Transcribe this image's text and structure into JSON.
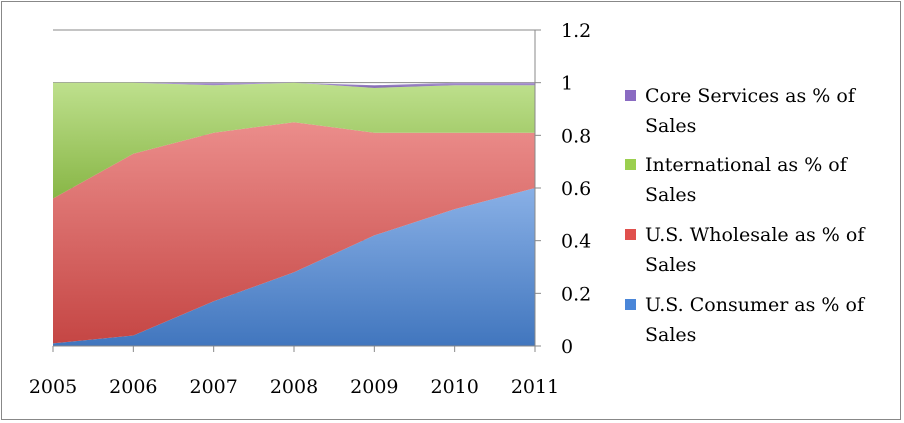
{
  "chart_data": {
    "type": "area",
    "stacked": true,
    "title": "",
    "xlabel": "",
    "ylabel": "",
    "x": [
      "2005",
      "2006",
      "2007",
      "2008",
      "2009",
      "2010",
      "2011"
    ],
    "ylim": [
      0,
      1.2
    ],
    "yticks": [
      "0",
      "0.2",
      "0.4",
      "0.6",
      "0.8",
      "1",
      "1.2"
    ],
    "grid": "horizontal",
    "legend_position": "right",
    "series": [
      {
        "name": "U.S. Consumer as % of Sales",
        "color": "#4a86d8",
        "values": [
          0.01,
          0.04,
          0.17,
          0.28,
          0.42,
          0.52,
          0.6
        ]
      },
      {
        "name": "U.S. Wholesale as % of Sales",
        "color": "#e0504d",
        "values": [
          0.55,
          0.69,
          0.64,
          0.57,
          0.39,
          0.29,
          0.21
        ]
      },
      {
        "name": "International as % of Sales",
        "color": "#9bcf4f",
        "values": [
          0.44,
          0.27,
          0.18,
          0.15,
          0.17,
          0.18,
          0.18
        ]
      },
      {
        "name": "Core Services as % of Sales",
        "color": "#8a6bc2",
        "values": [
          0.0,
          0.0,
          0.01,
          0.0,
          0.01,
          0.01,
          0.01
        ]
      }
    ]
  },
  "legend": [
    {
      "line1": "Core Services as % of",
      "line2": "Sales",
      "color": "#8a6bc2"
    },
    {
      "line1": "International as % of",
      "line2": "Sales",
      "color": "#9bcf4f"
    },
    {
      "line1": "U.S. Wholesale as % of",
      "line2": "Sales",
      "color": "#e0504d"
    },
    {
      "line1": "U.S. Consumer as % of",
      "line2": "Sales",
      "color": "#4a86d8"
    }
  ]
}
